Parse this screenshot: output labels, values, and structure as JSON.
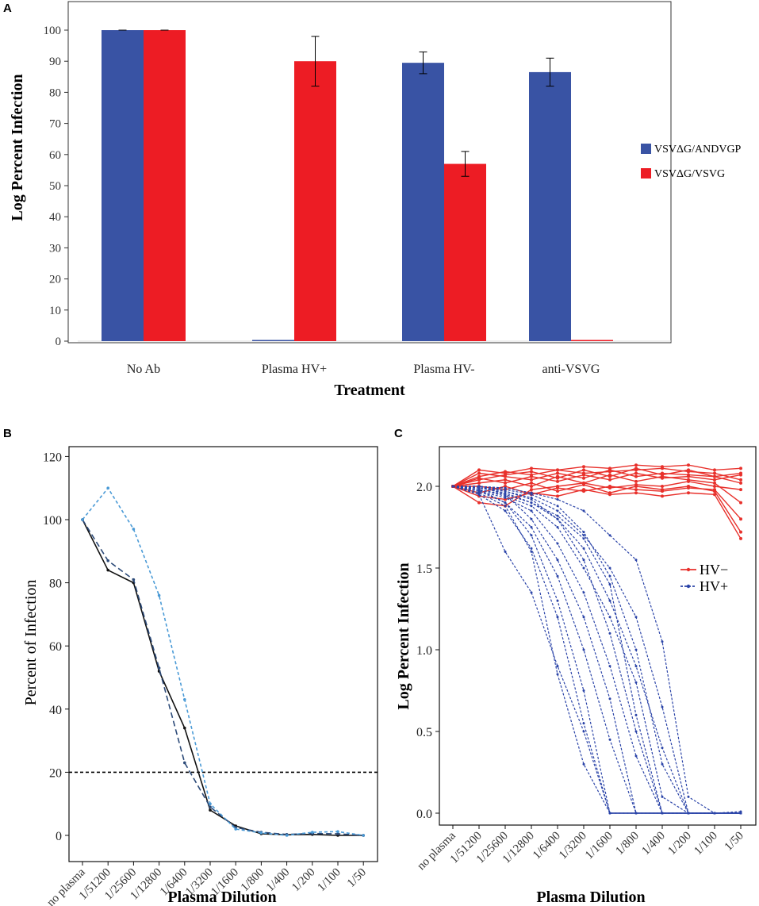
{
  "chart_data": [
    {
      "panel": "A",
      "type": "bar",
      "xlabel": "Treatment",
      "ylabel": "Log Percent Infection",
      "ylim": [
        0,
        105
      ],
      "yticks": [
        "0",
        "10",
        "20",
        "30",
        "40",
        "50",
        "60",
        "70",
        "80",
        "90",
        "100"
      ],
      "categories": [
        "No Ab",
        "Plasma HV+",
        "Plasma HV-",
        "anti-VSVG"
      ],
      "series": [
        {
          "name": "VSVΔG/ANDVGP",
          "color": "#3953a4",
          "values": [
            100,
            0,
            89.5,
            86.5
          ],
          "errors": [
            0,
            0,
            3.5,
            4.5
          ]
        },
        {
          "name": "VSVΔG/VSVG",
          "color": "#ed1c24",
          "values": [
            100,
            90,
            57,
            0
          ],
          "errors": [
            0,
            8,
            4,
            0
          ]
        }
      ],
      "legend_position": "right"
    },
    {
      "panel": "B",
      "type": "line",
      "xlabel": "Plasma Dilution",
      "ylabel": "Percent of Infection",
      "ylim": [
        -4,
        126
      ],
      "yticks": [
        "0",
        "20",
        "40",
        "60",
        "80",
        "100",
        "120"
      ],
      "categories": [
        "no plasma",
        "1/51200",
        "1/25600",
        "1/12800",
        "1/6400",
        "1/3200",
        "1/1600",
        "1/800",
        "1/400",
        "1/200",
        "1/100",
        "1/50"
      ],
      "threshold": 20,
      "series": [
        {
          "name": "solid",
          "color": "#111111",
          "dash": "",
          "values": [
            100,
            84,
            80,
            52,
            34,
            8,
            3,
            0.5,
            0.2,
            0.3,
            0,
            0
          ]
        },
        {
          "name": "dashed-dark",
          "color": "#2c4a78",
          "dash": "7,4",
          "values": [
            100,
            87,
            81,
            53,
            23,
            9,
            2.5,
            1,
            0.3,
            0.6,
            0.5,
            0
          ]
        },
        {
          "name": "dashed-light",
          "color": "#4a9ad6",
          "dash": "4,3",
          "values": [
            100,
            110,
            97,
            76,
            43,
            10,
            2,
            0.8,
            0,
            1,
            1.2,
            0
          ]
        }
      ]
    },
    {
      "panel": "C",
      "type": "line",
      "xlabel": "Plasma Dilution",
      "ylabel": "Log Percent Infection",
      "ylim": [
        -0.06,
        2.22
      ],
      "yticks": [
        "0.0",
        "0.5",
        "1.0",
        "1.5",
        "2.0"
      ],
      "categories": [
        "no plasma",
        "1/51200",
        "1/25600",
        "1/12800",
        "1/6400",
        "1/3200",
        "1/1600",
        "1/800",
        "1/400",
        "1/200",
        "1/100",
        "1/50"
      ],
      "legend": [
        {
          "name": "HV−",
          "color": "#e8302b"
        },
        {
          "name": "HV+",
          "color": "#2b44a8"
        }
      ],
      "series_hv_neg": [
        [
          2.0,
          2.05,
          2.02,
          2.06,
          2.03,
          2.07,
          2.04,
          2.08,
          2.05,
          2.06,
          2.04,
          2.07
        ],
        [
          2.0,
          1.9,
          1.88,
          1.98,
          2.0,
          2.02,
          1.99,
          2.01,
          2.0,
          2.03,
          2.0,
          1.98
        ],
        [
          2.0,
          2.1,
          2.08,
          2.11,
          2.1,
          2.12,
          2.11,
          2.13,
          2.12,
          2.13,
          2.1,
          2.11
        ],
        [
          2.0,
          2.02,
          2.04,
          2.0,
          2.06,
          2.02,
          2.07,
          2.03,
          2.06,
          2.04,
          2.02,
          1.9
        ],
        [
          2.0,
          1.96,
          2.0,
          1.95,
          1.99,
          1.97,
          2.0,
          1.98,
          1.97,
          1.99,
          1.98,
          1.8
        ],
        [
          2.0,
          2.06,
          2.09,
          2.07,
          2.1,
          2.08,
          2.09,
          2.1,
          2.11,
          2.09,
          2.08,
          2.04
        ],
        [
          2.0,
          2.0,
          1.98,
          2.02,
          1.97,
          2.01,
          1.96,
          2.0,
          1.98,
          2.0,
          1.97,
          1.72
        ],
        [
          2.0,
          2.08,
          2.06,
          2.04,
          2.08,
          2.05,
          2.1,
          2.06,
          2.08,
          2.07,
          2.06,
          2.02
        ],
        [
          2.0,
          1.94,
          1.92,
          1.96,
          1.94,
          1.98,
          1.95,
          1.96,
          1.94,
          1.96,
          1.95,
          1.68
        ],
        [
          2.0,
          2.04,
          2.07,
          2.09,
          2.05,
          2.1,
          2.06,
          2.11,
          2.07,
          2.1,
          2.06,
          2.08
        ]
      ],
      "series_hv_pos": [
        [
          2.0,
          2.0,
          1.95,
          1.8,
          1.55,
          1.2,
          0.7,
          0.0,
          0.0,
          0.0,
          0.0,
          0.0
        ],
        [
          2.0,
          1.98,
          1.9,
          1.7,
          1.3,
          0.75,
          0.0,
          0.0,
          0.0,
          0.0,
          0.0,
          0.01
        ],
        [
          2.0,
          1.97,
          1.93,
          1.85,
          1.65,
          1.35,
          0.9,
          0.35,
          0.0,
          0.0,
          0.0,
          0.0
        ],
        [
          2.0,
          1.95,
          1.85,
          1.62,
          1.2,
          0.55,
          0.0,
          0.0,
          0.0,
          0.0,
          0.0,
          0.0
        ],
        [
          2.0,
          1.99,
          1.97,
          1.92,
          1.8,
          1.55,
          1.1,
          0.5,
          0.0,
          0.0,
          0.0,
          0.0
        ],
        [
          2.0,
          1.96,
          1.88,
          1.6,
          0.85,
          0.3,
          0.0,
          0.0,
          0.0,
          0.0,
          0.0,
          0.0
        ],
        [
          2.0,
          2.0,
          1.98,
          1.95,
          1.88,
          1.72,
          1.45,
          1.0,
          0.3,
          0.0,
          0.0,
          0.0
        ],
        [
          2.0,
          1.98,
          1.94,
          1.88,
          1.75,
          1.5,
          1.2,
          0.8,
          0.1,
          0.0,
          0.0,
          0.0
        ],
        [
          2.0,
          2.0,
          1.99,
          1.96,
          1.92,
          1.85,
          1.7,
          1.55,
          1.05,
          0.1,
          0.0,
          0.0
        ],
        [
          2.0,
          1.97,
          1.9,
          1.75,
          1.45,
          1.0,
          0.45,
          0.0,
          0.0,
          0.0,
          0.0,
          0.0
        ],
        [
          2.0,
          1.99,
          1.96,
          1.9,
          1.8,
          1.62,
          1.3,
          0.9,
          0.4,
          0.0,
          0.0,
          0.0
        ],
        [
          2.0,
          1.95,
          1.6,
          1.35,
          0.9,
          0.5,
          0.0,
          0.0,
          0.0,
          0.0,
          0.0,
          0.0
        ],
        [
          2.0,
          1.98,
          1.95,
          1.9,
          1.82,
          1.68,
          1.4,
          0.6,
          0.0,
          0.0,
          0.0,
          0.0
        ],
        [
          2.0,
          2.0,
          1.97,
          1.93,
          1.85,
          1.7,
          1.5,
          1.2,
          0.65,
          0.0,
          0.0,
          0.0
        ]
      ]
    }
  ]
}
